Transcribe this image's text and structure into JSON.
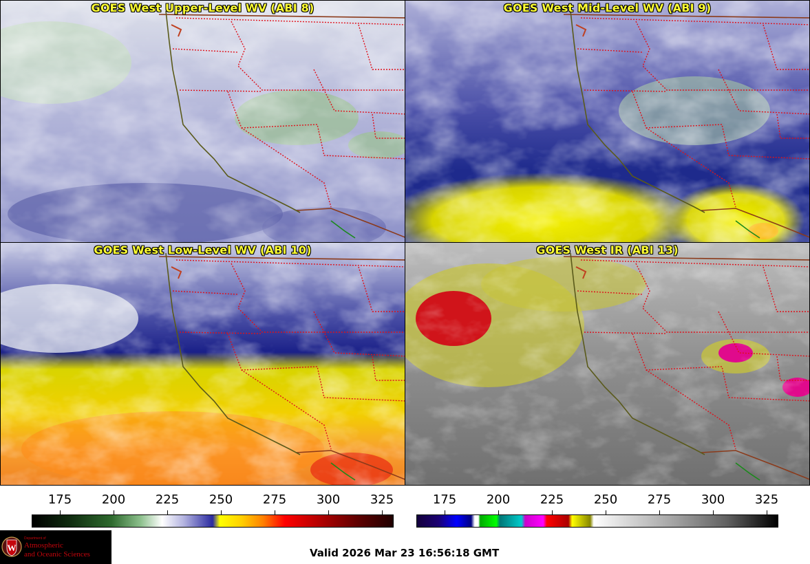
{
  "panels": [
    {
      "id": "upper",
      "title": "GOES West Upper-Level WV (ABI 8)"
    },
    {
      "id": "mid",
      "title": "GOES West Mid-Level WV (ABI 9)"
    },
    {
      "id": "low",
      "title": "GOES West Low-Level WV (ABI 10)"
    },
    {
      "id": "ir",
      "title": "GOES West IR (ABI 13)"
    }
  ],
  "colorbars": {
    "wv": {
      "ticks": [
        "175",
        "200",
        "225",
        "250",
        "275",
        "300",
        "325"
      ]
    },
    "ir": {
      "ticks": [
        "175",
        "200",
        "225",
        "250",
        "275",
        "300",
        "325"
      ]
    }
  },
  "logo": {
    "dept": "Department of",
    "line1": "Atmospheric",
    "line2": "and Oceanic Sciences",
    "colors": {
      "background": "#000000",
      "text": "#c5050c"
    }
  },
  "valid_time": "Valid 2026 Mar 23 16:56:18 GMT",
  "colors": {
    "title_text": "#ffff33",
    "state_borders": "#e0101a",
    "country_borders": "#8b3a1a",
    "coastline": "#5a5a1a"
  }
}
